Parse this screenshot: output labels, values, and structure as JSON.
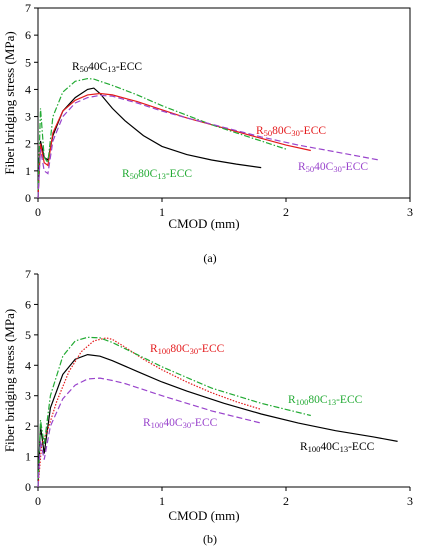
{
  "chart_data": [
    {
      "type": "line",
      "panel_label": "(a)",
      "xlabel": "CMOD (mm)",
      "ylabel": "Fiber bridging stress (MPa)",
      "xlim": [
        0,
        3
      ],
      "ylim": [
        0,
        7
      ],
      "xticks": [
        "0",
        "1",
        "2",
        "3"
      ],
      "yticks": [
        "0",
        "1",
        "2",
        "3",
        "4",
        "5",
        "6",
        "7"
      ],
      "grid": false,
      "frame": true,
      "series": [
        {
          "name": "R50 40C13-ECC",
          "label_parts": [
            [
              "R",
              "50",
              "40C",
              "13",
              "-ECC"
            ]
          ],
          "color": "#000000",
          "dash": "",
          "label_color": "#000000",
          "x": [
            0.0,
            0.02,
            0.05,
            0.08,
            0.12,
            0.2,
            0.3,
            0.4,
            0.45,
            0.5,
            0.6,
            0.7,
            0.85,
            1.0,
            1.2,
            1.4,
            1.6,
            1.8
          ],
          "y": [
            0.0,
            2.1,
            1.5,
            1.4,
            2.3,
            3.2,
            3.7,
            4.0,
            4.05,
            3.85,
            3.3,
            2.85,
            2.3,
            1.9,
            1.6,
            1.4,
            1.25,
            1.12
          ]
        },
        {
          "name": "R50 80C30-ECC",
          "label_parts": [
            [
              "R",
              "50",
              "80C",
              "30",
              "-ECC"
            ]
          ],
          "color": "#e41a1c",
          "dash": "",
          "label_color": "#e41a1c",
          "x": [
            0.0,
            0.02,
            0.05,
            0.08,
            0.12,
            0.2,
            0.3,
            0.4,
            0.5,
            0.6,
            0.8,
            1.0,
            1.2,
            1.4,
            1.6,
            1.8,
            2.0,
            2.2
          ],
          "y": [
            0.0,
            2.0,
            1.3,
            1.2,
            2.4,
            3.2,
            3.6,
            3.8,
            3.85,
            3.8,
            3.55,
            3.25,
            2.95,
            2.7,
            2.45,
            2.2,
            1.95,
            1.75
          ]
        },
        {
          "name": "R50 80C13-ECC",
          "label_parts": [
            [
              "R",
              "50",
              "80C",
              "13",
              "-ECC"
            ]
          ],
          "color": "#22aa33",
          "dash": "6,2,1.5,2",
          "label_color": "#22aa33",
          "x": [
            0.0,
            0.02,
            0.05,
            0.08,
            0.12,
            0.2,
            0.3,
            0.4,
            0.45,
            0.5,
            0.6,
            0.8,
            1.0,
            1.2,
            1.4,
            1.6,
            1.8,
            2.0
          ],
          "y": [
            0.0,
            3.3,
            1.5,
            1.3,
            3.0,
            3.9,
            4.3,
            4.4,
            4.38,
            4.3,
            4.15,
            3.8,
            3.4,
            3.05,
            2.7,
            2.4,
            2.1,
            1.8
          ]
        },
        {
          "name": "R50 40C30-ECC",
          "label_parts": [
            [
              "R",
              "50",
              "40C",
              "30",
              "-ECC"
            ]
          ],
          "color": "#9944cc",
          "dash": "6,3",
          "label_color": "#9944cc",
          "x": [
            0.0,
            0.02,
            0.05,
            0.08,
            0.12,
            0.2,
            0.3,
            0.4,
            0.5,
            0.6,
            0.8,
            1.0,
            1.2,
            1.5,
            1.8,
            2.1,
            2.4,
            2.75
          ],
          "y": [
            0.0,
            1.8,
            1.0,
            0.9,
            2.1,
            3.0,
            3.5,
            3.7,
            3.78,
            3.75,
            3.5,
            3.2,
            2.95,
            2.6,
            2.25,
            1.95,
            1.7,
            1.4
          ]
        }
      ]
    },
    {
      "type": "line",
      "panel_label": "(b)",
      "xlabel": "CMOD (mm)",
      "ylabel": "Fiber bridging stress (MPa)",
      "xlim": [
        0,
        3
      ],
      "ylim": [
        0,
        7
      ],
      "xticks": [
        "0",
        "1",
        "2",
        "3"
      ],
      "yticks": [
        "0",
        "1",
        "2",
        "3",
        "4",
        "5",
        "6",
        "7"
      ],
      "grid": false,
      "frame": false,
      "series": [
        {
          "name": "R100 40C13-ECC",
          "label_parts": [
            [
              "R",
              "100",
              "40C",
              "13",
              "-ECC"
            ]
          ],
          "color": "#000000",
          "dash": "",
          "label_color": "#000000",
          "x": [
            0.0,
            0.02,
            0.05,
            0.1,
            0.2,
            0.3,
            0.4,
            0.5,
            0.6,
            0.8,
            1.0,
            1.2,
            1.5,
            1.8,
            2.1,
            2.4,
            2.7,
            2.9
          ],
          "y": [
            0.0,
            2.0,
            1.1,
            2.6,
            3.7,
            4.2,
            4.35,
            4.3,
            4.15,
            3.8,
            3.45,
            3.15,
            2.75,
            2.4,
            2.1,
            1.85,
            1.65,
            1.5
          ]
        },
        {
          "name": "R100 80C30-ECC",
          "label_parts": [
            [
              "R",
              "100",
              "80C",
              "30",
              "-ECC"
            ]
          ],
          "color": "#e41a1c",
          "dash": "1.5,1.5",
          "label_color": "#e41a1c",
          "x": [
            0.0,
            0.03,
            0.08,
            0.15,
            0.25,
            0.35,
            0.45,
            0.55,
            0.6,
            0.7,
            0.85,
            1.0,
            1.2,
            1.4,
            1.6,
            1.8
          ],
          "y": [
            0.0,
            1.4,
            1.9,
            2.8,
            3.8,
            4.45,
            4.8,
            4.9,
            4.85,
            4.6,
            4.2,
            3.85,
            3.45,
            3.1,
            2.8,
            2.55
          ]
        },
        {
          "name": "R100 80C13-ECC",
          "label_parts": [
            [
              "R",
              "100",
              "80C",
              "13",
              "-ECC"
            ]
          ],
          "color": "#22aa33",
          "dash": "6,2,1.5,2",
          "label_color": "#22aa33",
          "x": [
            0.0,
            0.02,
            0.05,
            0.1,
            0.2,
            0.3,
            0.4,
            0.5,
            0.6,
            0.8,
            1.0,
            1.2,
            1.4,
            1.6,
            1.8,
            2.0,
            2.2
          ],
          "y": [
            0.0,
            2.2,
            1.4,
            3.0,
            4.3,
            4.8,
            4.92,
            4.9,
            4.75,
            4.35,
            3.95,
            3.6,
            3.25,
            3.0,
            2.75,
            2.55,
            2.35
          ]
        },
        {
          "name": "R100 40C30-ECC",
          "label_parts": [
            [
              "R",
              "100",
              "40C",
              "30",
              "-ECC"
            ]
          ],
          "color": "#9944cc",
          "dash": "6,3",
          "label_color": "#9944cc",
          "x": [
            0.0,
            0.02,
            0.05,
            0.1,
            0.2,
            0.3,
            0.4,
            0.5,
            0.6,
            0.7,
            0.85,
            1.0,
            1.2,
            1.4,
            1.6,
            1.8
          ],
          "y": [
            0.0,
            1.5,
            0.9,
            2.0,
            2.9,
            3.35,
            3.55,
            3.58,
            3.5,
            3.4,
            3.2,
            3.0,
            2.75,
            2.5,
            2.3,
            2.1
          ]
        }
      ]
    }
  ]
}
